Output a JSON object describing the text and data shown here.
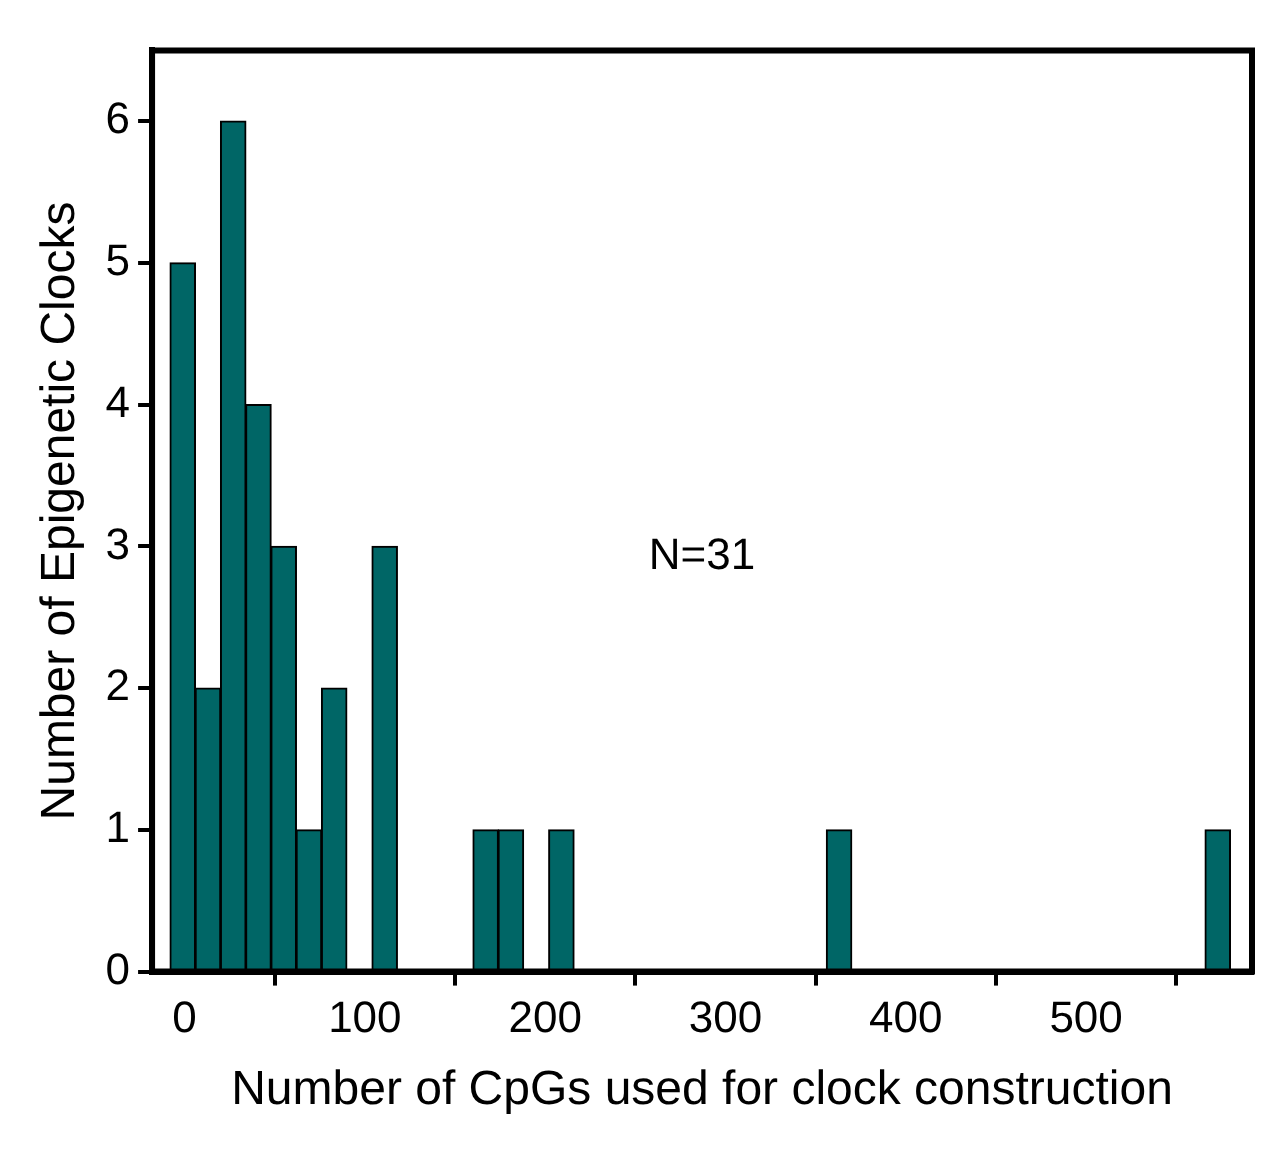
{
  "chart_data": {
    "type": "histogram",
    "xlabel": "Number of CpGs used for clock construction",
    "ylabel": "Number of Epigenetic Clocks",
    "bins": [
      -8,
      6,
      20,
      34,
      48,
      62,
      76,
      90,
      104,
      118,
      132,
      146,
      160,
      174,
      188,
      202,
      216,
      230,
      244,
      258,
      272,
      286,
      300,
      314,
      328,
      342,
      356,
      370,
      384,
      398,
      412,
      426,
      440,
      454,
      468,
      482,
      496,
      510,
      524,
      538,
      552,
      566,
      580
    ],
    "values": [
      5,
      2,
      6,
      4,
      3,
      1,
      2,
      0,
      3,
      0,
      0,
      0,
      1,
      1,
      0,
      1,
      0,
      0,
      0,
      0,
      0,
      0,
      0,
      0,
      0,
      0,
      1,
      0,
      0,
      0,
      0,
      0,
      0,
      0,
      0,
      0,
      0,
      0,
      0,
      0,
      0,
      1
    ],
    "color": "#006666",
    "xlim": [
      -18,
      592
    ],
    "xticks": [
      0,
      100,
      200,
      300,
      400,
      500
    ],
    "ylim": [
      0,
      6.5
    ],
    "yticks": [
      0,
      1,
      2,
      3,
      4,
      5,
      6
    ],
    "grid": false,
    "annotations": [
      "N=31"
    ]
  }
}
